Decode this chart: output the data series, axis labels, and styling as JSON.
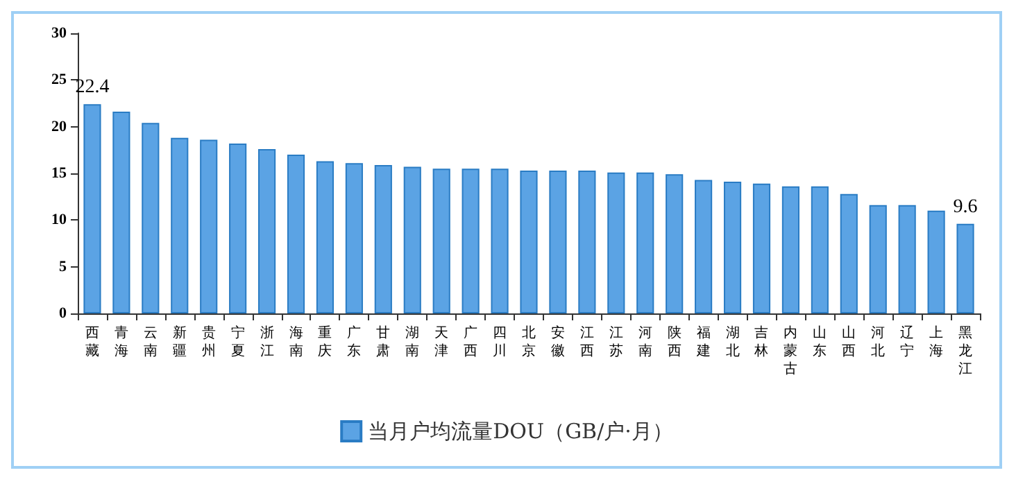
{
  "chart_data": {
    "type": "bar",
    "categories": [
      "西藏",
      "青海",
      "云南",
      "新疆",
      "贵州",
      "宁夏",
      "浙江",
      "海南",
      "重庆",
      "广东",
      "甘肃",
      "湖南",
      "天津",
      "广西",
      "四川",
      "北京",
      "安徽",
      "江西",
      "江苏",
      "河南",
      "陕西",
      "福建",
      "湖北",
      "吉林",
      "内蒙古",
      "山东",
      "山西",
      "河北",
      "辽宁",
      "上海",
      "黑龙江"
    ],
    "series": [
      {
        "name": "当月户均流量DOU（GB/户·月）",
        "color": "#5ba3e4",
        "values": [
          22.4,
          21.6,
          20.4,
          18.8,
          18.6,
          18.2,
          17.6,
          17.0,
          16.3,
          16.1,
          15.9,
          15.7,
          15.5,
          15.5,
          15.5,
          15.3,
          15.3,
          15.3,
          15.1,
          15.1,
          14.9,
          14.3,
          14.1,
          13.9,
          13.6,
          13.6,
          12.8,
          11.6,
          11.6,
          11.0,
          9.6
        ],
        "value_labels": [
          "22.4",
          null,
          null,
          null,
          null,
          null,
          null,
          null,
          null,
          null,
          null,
          null,
          null,
          null,
          null,
          null,
          null,
          null,
          null,
          null,
          null,
          null,
          null,
          null,
          null,
          null,
          null,
          null,
          null,
          null,
          "9.6"
        ]
      }
    ],
    "ylim": [
      0,
      30
    ],
    "yticks": [
      0,
      5,
      10,
      15,
      20,
      25,
      30
    ],
    "grid": false,
    "legend": "bottom"
  }
}
